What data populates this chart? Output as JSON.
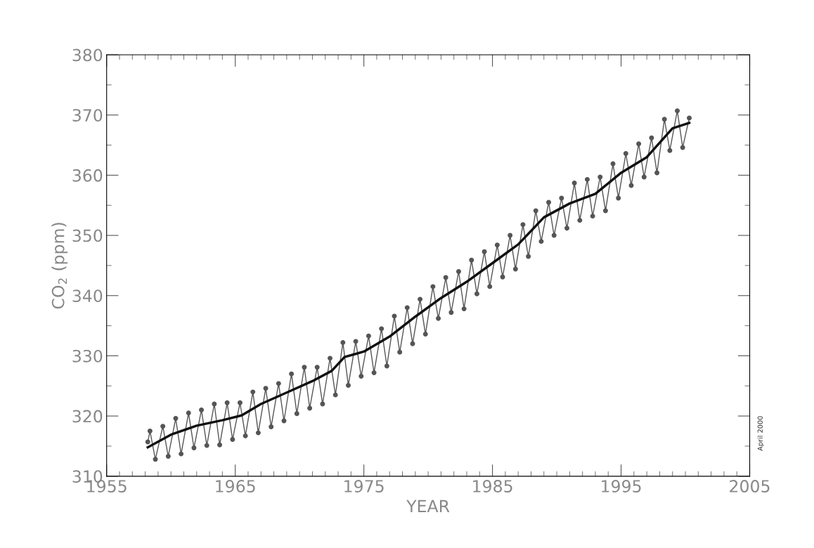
{
  "chart_data": {
    "type": "line",
    "xlabel": "YEAR",
    "ylabel": "CO$_{2}$ (ppm)",
    "xlim": [
      1955,
      2005
    ],
    "xticks": [
      1955,
      1965,
      1975,
      1985,
      1995,
      2005
    ],
    "ylim": [
      310,
      380
    ],
    "yticks": [
      310,
      320,
      330,
      340,
      350,
      360,
      370,
      380
    ],
    "grid": false,
    "annotations": [
      "April 2000"
    ],
    "series": [
      {
        "color": "#555555",
        "marker": "circle",
        "x": [
          1958.2,
          1958.37,
          1958.79,
          1959.37,
          1959.79,
          1960.37,
          1960.79,
          1961.37,
          1961.79,
          1962.37,
          1962.79,
          1963.37,
          1963.79,
          1964.37,
          1964.79,
          1965.37,
          1965.79,
          1966.37,
          1966.79,
          1967.37,
          1967.79,
          1968.37,
          1968.79,
          1969.37,
          1969.79,
          1970.37,
          1970.79,
          1971.37,
          1971.79,
          1972.37,
          1972.79,
          1973.37,
          1973.79,
          1974.37,
          1974.79,
          1975.37,
          1975.79,
          1976.37,
          1976.79,
          1977.37,
          1977.79,
          1978.37,
          1978.79,
          1979.37,
          1979.79,
          1980.37,
          1980.79,
          1981.37,
          1981.79,
          1982.37,
          1982.79,
          1983.37,
          1983.79,
          1984.37,
          1984.79,
          1985.37,
          1985.79,
          1986.37,
          1986.79,
          1987.37,
          1987.79,
          1988.37,
          1988.79,
          1989.37,
          1989.79,
          1990.37,
          1990.79,
          1991.37,
          1991.79,
          1992.37,
          1992.79,
          1993.37,
          1993.79,
          1994.37,
          1994.79,
          1995.37,
          1995.79,
          1996.37,
          1996.79,
          1997.37,
          1997.79,
          1998.37,
          1998.79,
          1999.37,
          1999.79,
          2000.3
        ],
        "values": [
          315.7,
          317.5,
          312.8,
          318.3,
          313.3,
          319.6,
          313.7,
          320.5,
          314.7,
          321.0,
          315.1,
          322.0,
          315.2,
          322.2,
          316.1,
          322.2,
          316.7,
          324.0,
          317.2,
          324.6,
          318.2,
          325.4,
          319.2,
          327.0,
          320.4,
          328.1,
          321.3,
          328.1,
          322.0,
          329.6,
          323.5,
          332.2,
          325.1,
          332.4,
          326.6,
          333.3,
          327.2,
          334.5,
          328.3,
          336.6,
          330.6,
          338.0,
          332.0,
          339.4,
          333.6,
          341.5,
          336.2,
          343.0,
          337.2,
          344.0,
          337.8,
          345.9,
          340.3,
          347.3,
          341.5,
          348.4,
          343.1,
          350.0,
          344.4,
          351.8,
          346.5,
          354.1,
          349.0,
          355.5,
          350.0,
          356.2,
          351.2,
          358.7,
          352.5,
          359.3,
          353.2,
          359.7,
          354.1,
          361.9,
          356.2,
          363.6,
          358.3,
          365.2,
          359.7,
          366.2,
          360.4,
          369.3,
          364.1,
          370.7,
          364.6,
          369.5
        ]
      },
      {
        "color": "#111111",
        "marker": "none",
        "x": [
          1958.2,
          1960,
          1962,
          1964,
          1965.5,
          1967,
          1969,
          1971,
          1972.5,
          1973.5,
          1975,
          1977,
          1979,
          1981,
          1983,
          1985,
          1987,
          1989,
          1991,
          1993,
          1995,
          1997,
          1999,
          2000.3
        ],
        "values": [
          314.8,
          316.9,
          318.4,
          319.3,
          320.1,
          322.0,
          323.9,
          325.8,
          327.5,
          329.8,
          330.7,
          333.2,
          336.5,
          339.6,
          342.3,
          345.4,
          348.5,
          353.0,
          355.3,
          356.9,
          360.4,
          363.0,
          367.8,
          368.7
        ]
      }
    ]
  }
}
